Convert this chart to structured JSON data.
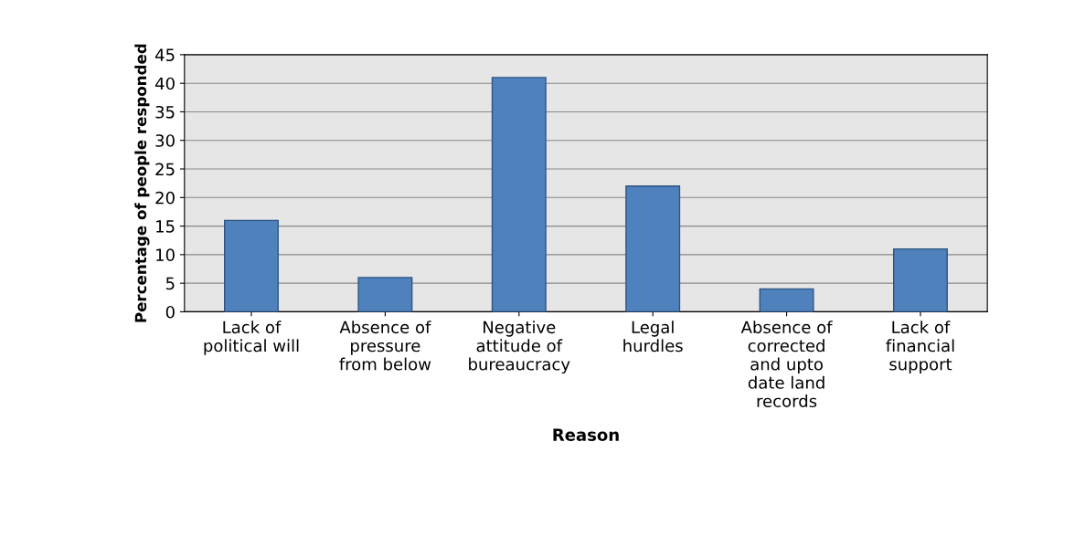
{
  "chart_data": {
    "type": "bar",
    "xlabel": "Reason",
    "ylabel": "Percentage of people responded",
    "categories": [
      "Lack of\npolitical will",
      "Absence of\npressure\nfrom below",
      "Negative\nattitude of\nbureaucracy",
      "Legal\nhurdles",
      "Absence of\ncorrected\nand upto\ndate land\nrecords",
      "Lack of\nfinancial\nsupport"
    ],
    "values": [
      16,
      6,
      41,
      22,
      4,
      11
    ],
    "color": "#4f81bd",
    "ylim": [
      0,
      45
    ],
    "yticks": [
      0,
      5,
      10,
      15,
      20,
      25,
      30,
      35,
      40,
      45
    ],
    "grid": "y"
  }
}
